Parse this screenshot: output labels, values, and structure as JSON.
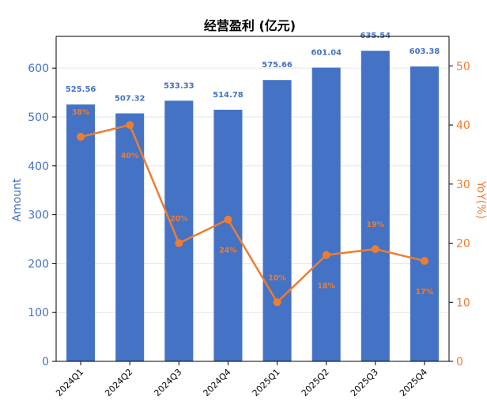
{
  "colors": {
    "bar": "#4472C4",
    "line": "#ED7D31",
    "left_axis": "#4472C4",
    "right_axis": "#ED7D31",
    "grid": "#e6e6e6"
  },
  "chart_data": {
    "type": "bar",
    "title": "经营盈利 (亿元)",
    "xlabel": "",
    "ylabel": "Amount",
    "y2label": "YoY(%)",
    "categories": [
      "2024Q1",
      "2024Q2",
      "2024Q3",
      "2024Q4",
      "2025Q1",
      "2025Q2",
      "2025Q3",
      "2025Q4"
    ],
    "ylim": [
      0,
      665
    ],
    "y2lim": [
      0,
      55
    ],
    "yticks": [
      "0",
      "100",
      "200",
      "300",
      "400",
      "500",
      "600"
    ],
    "y2ticks": [
      "0",
      "10",
      "20",
      "30",
      "40",
      "50"
    ],
    "grid": true,
    "series": [
      {
        "type": "bar",
        "axis": "left",
        "values": [
          525.56,
          507.32,
          533.33,
          514.78,
          575.66,
          601.04,
          635.54,
          603.38
        ],
        "labels": [
          "525.56",
          "507.32",
          "533.33",
          "514.78",
          "575.66",
          "601.04",
          "635.54",
          "603.38"
        ]
      },
      {
        "type": "line",
        "axis": "right",
        "values": [
          38,
          40,
          20,
          24,
          10,
          18,
          19,
          17
        ],
        "labels": [
          "38%",
          "40%",
          "20%",
          "24%",
          "10%",
          "18%",
          "19%",
          "17%"
        ]
      }
    ]
  }
}
